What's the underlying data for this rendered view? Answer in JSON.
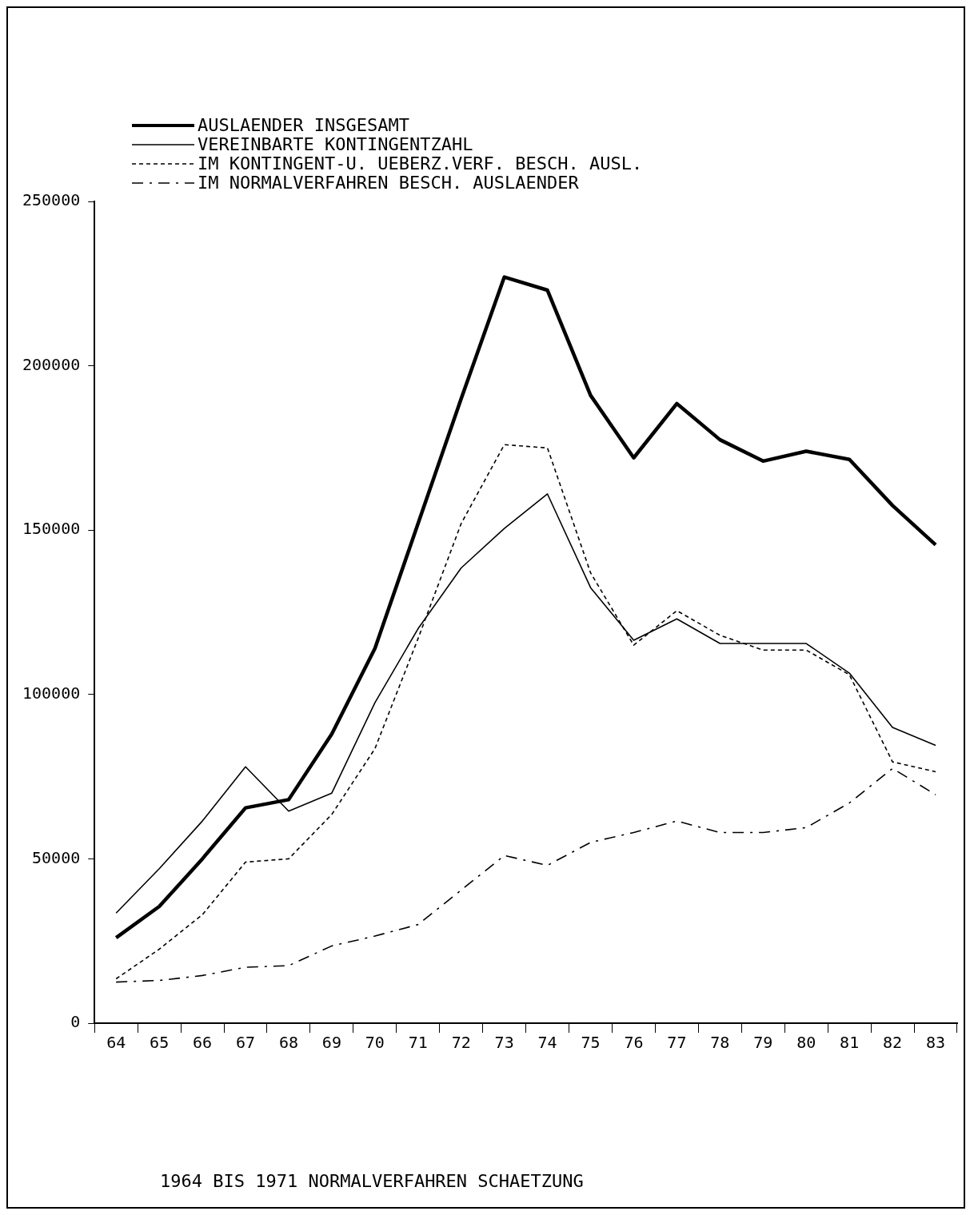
{
  "chart_data": {
    "type": "line",
    "categories": [
      "64",
      "65",
      "66",
      "67",
      "68",
      "69",
      "70",
      "71",
      "72",
      "73",
      "74",
      "75",
      "76",
      "77",
      "78",
      "79",
      "80",
      "81",
      "82",
      "83"
    ],
    "series": [
      {
        "name": "AUSLAENDER INSGESAMT",
        "color": "#000000",
        "line_style": "solid",
        "values": [
          26000,
          35500,
          50000,
          65500,
          68000,
          88000,
          114000,
          152000,
          190000,
          227000,
          223000,
          191000,
          172000,
          188500,
          177500,
          171000,
          174000,
          171500,
          157500,
          145500
        ]
      },
      {
        "name": "VEREINBARTE KONTINGENTZAHL",
        "color": "#000000",
        "line_style": "solid",
        "values": [
          33500,
          47000,
          61500,
          78000,
          64500,
          70000,
          97500,
          120000,
          138500,
          150500,
          161000,
          132500,
          116500,
          123000,
          115500,
          115500,
          115500,
          106500,
          90000,
          84500
        ]
      },
      {
        "name": "IM KONTINGENT-U. UEBERZ.VERF. BESCH. AUSL.",
        "color": "#000000",
        "line_style": "dotted",
        "values": [
          13500,
          22500,
          33000,
          49000,
          50000,
          63500,
          83500,
          117000,
          152000,
          176000,
          175000,
          137000,
          115000,
          125500,
          118000,
          113500,
          113500,
          106000,
          79500,
          76500
        ]
      },
      {
        "name": "IM NORMALVERFAHREN BESCH. AUSLAENDER",
        "color": "#000000",
        "line_style": "dashed",
        "values": [
          12500,
          13000,
          14500,
          17000,
          17500,
          23500,
          26500,
          30000,
          40500,
          51000,
          48000,
          55000,
          58000,
          61500,
          58000,
          58000,
          59500,
          67000,
          77500,
          69500
        ]
      }
    ],
    "ylim": [
      0,
      250000
    ],
    "yticks": [
      0,
      50000,
      100000,
      150000,
      200000,
      250000
    ],
    "grid": false,
    "legend": "top left",
    "marker": "none",
    "annotations": [
      "1964 BIS 1971 NORMALVERFAHREN SCHAETZUNG"
    ]
  }
}
